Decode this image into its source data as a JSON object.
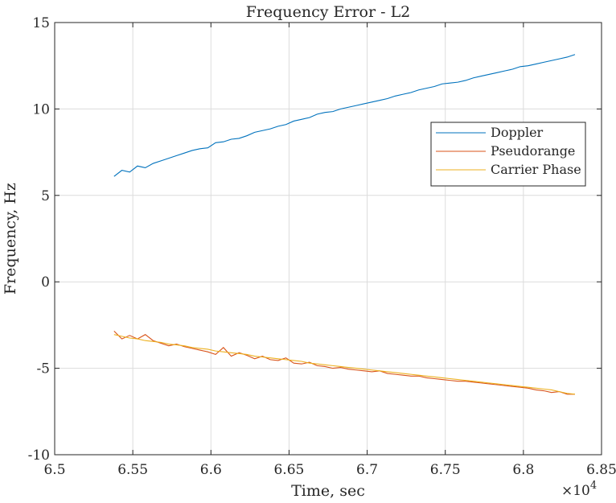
{
  "chart_data": {
    "type": "line",
    "title": "Frequency Error - L2",
    "xlabel": "Time, sec",
    "ylabel": "Frequency, Hz",
    "x_exponent_label": "×10",
    "x_exponent": "4",
    "xlim": [
      6.5,
      6.85
    ],
    "ylim": [
      -10,
      15
    ],
    "xticks": [
      "6.5",
      "6.55",
      "6.6",
      "6.65",
      "6.7",
      "6.75",
      "6.8",
      "6.85"
    ],
    "yticks": [
      "-10",
      "-5",
      "0",
      "5",
      "10",
      "15"
    ],
    "grid": true,
    "legend_position": "right",
    "x": [
      6.538,
      6.543,
      6.548,
      6.553,
      6.558,
      6.563,
      6.568,
      6.573,
      6.578,
      6.583,
      6.588,
      6.593,
      6.598,
      6.603,
      6.608,
      6.613,
      6.618,
      6.623,
      6.628,
      6.633,
      6.638,
      6.643,
      6.648,
      6.653,
      6.658,
      6.663,
      6.668,
      6.673,
      6.678,
      6.683,
      6.688,
      6.693,
      6.698,
      6.703,
      6.708,
      6.713,
      6.718,
      6.723,
      6.728,
      6.733,
      6.738,
      6.743,
      6.748,
      6.753,
      6.758,
      6.763,
      6.768,
      6.773,
      6.778,
      6.783,
      6.788,
      6.793,
      6.798,
      6.803,
      6.808,
      6.813,
      6.818,
      6.823,
      6.828,
      6.833
    ],
    "series": [
      {
        "name": "Doppler",
        "color": "#0072BD",
        "values": [
          6.1,
          6.45,
          6.35,
          6.7,
          6.6,
          6.85,
          7.0,
          7.15,
          7.3,
          7.45,
          7.6,
          7.7,
          7.75,
          8.05,
          8.1,
          8.25,
          8.3,
          8.45,
          8.65,
          8.75,
          8.85,
          9.0,
          9.1,
          9.3,
          9.4,
          9.5,
          9.7,
          9.8,
          9.85,
          10.0,
          10.1,
          10.2,
          10.3,
          10.4,
          10.5,
          10.6,
          10.75,
          10.85,
          10.95,
          11.1,
          11.2,
          11.3,
          11.45,
          11.5,
          11.55,
          11.65,
          11.8,
          11.9,
          12.0,
          12.1,
          12.2,
          12.3,
          12.45,
          12.5,
          12.6,
          12.7,
          12.8,
          12.9,
          13.0,
          13.15
        ]
      },
      {
        "name": "Pseudorange",
        "color": "#D95319",
        "values": [
          -2.85,
          -3.3,
          -3.1,
          -3.3,
          -3.05,
          -3.4,
          -3.55,
          -3.7,
          -3.6,
          -3.75,
          -3.85,
          -3.95,
          -4.05,
          -4.2,
          -3.8,
          -4.3,
          -4.1,
          -4.25,
          -4.45,
          -4.3,
          -4.5,
          -4.55,
          -4.4,
          -4.7,
          -4.75,
          -4.65,
          -4.85,
          -4.9,
          -5.0,
          -4.95,
          -5.05,
          -5.1,
          -5.15,
          -5.2,
          -5.15,
          -5.3,
          -5.35,
          -5.4,
          -5.45,
          -5.45,
          -5.55,
          -5.6,
          -5.65,
          -5.7,
          -5.75,
          -5.75,
          -5.8,
          -5.85,
          -5.9,
          -5.95,
          -6.0,
          -6.05,
          -6.1,
          -6.15,
          -6.25,
          -6.3,
          -6.4,
          -6.35,
          -6.5,
          -6.5
        ]
      },
      {
        "name": "Carrier Phase",
        "color": "#EDB120",
        "values": [
          -3.05,
          -3.15,
          -3.25,
          -3.3,
          -3.4,
          -3.45,
          -3.5,
          -3.6,
          -3.65,
          -3.7,
          -3.8,
          -3.85,
          -3.9,
          -4.0,
          -4.05,
          -4.1,
          -4.15,
          -4.2,
          -4.3,
          -4.35,
          -4.4,
          -4.45,
          -4.5,
          -4.55,
          -4.6,
          -4.7,
          -4.75,
          -4.8,
          -4.85,
          -4.9,
          -4.95,
          -5.0,
          -5.05,
          -5.1,
          -5.15,
          -5.2,
          -5.25,
          -5.3,
          -5.35,
          -5.4,
          -5.45,
          -5.5,
          -5.55,
          -5.6,
          -5.65,
          -5.7,
          -5.75,
          -5.8,
          -5.85,
          -5.9,
          -5.95,
          -6.0,
          -6.05,
          -6.1,
          -6.15,
          -6.2,
          -6.25,
          -6.35,
          -6.45,
          -6.5
        ]
      }
    ]
  }
}
